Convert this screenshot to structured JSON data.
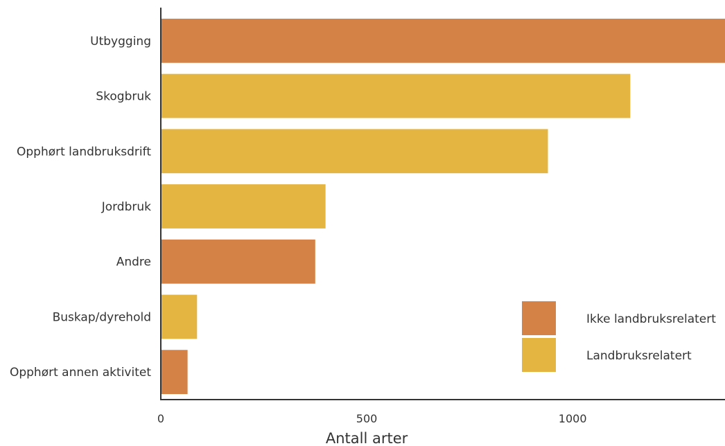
{
  "chart_data": {
    "type": "bar",
    "orientation": "horizontal",
    "categories": [
      "Utbygging",
      "Skogbruk",
      "Opphørt landbruksdrift",
      "Jordbruk",
      "Andre",
      "Buskap/dyrehold",
      "Opphørt annen aktivitet"
    ],
    "values": [
      1385,
      1140,
      940,
      400,
      375,
      88,
      65
    ],
    "groups": [
      "Ikke landbruksrelatert",
      "Landbruksrelatert",
      "Landbruksrelatert",
      "Landbruksrelatert",
      "Ikke landbruksrelatert",
      "Landbruksrelatert",
      "Ikke landbruksrelatert"
    ],
    "colors": {
      "Ikke landbruksrelatert": "#d58246",
      "Landbruksrelatert": "#e5b542"
    },
    "xlabel": "Antall arter",
    "ylabel": "",
    "xlim": [
      0,
      1370
    ],
    "xticks": [
      "0",
      "500",
      "1000"
    ],
    "grid": false,
    "legend": {
      "placement": "bottom-right",
      "entries": [
        "Ikke landbruksrelatert",
        "Landbruksrelatert"
      ]
    }
  }
}
